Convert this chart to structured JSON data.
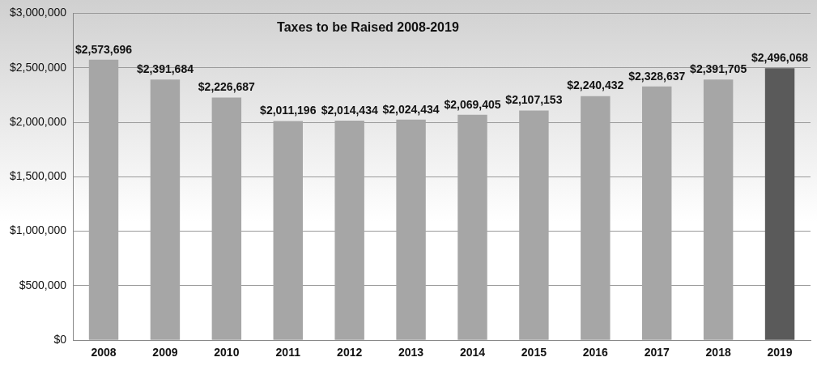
{
  "chart_data": {
    "type": "bar",
    "title": "Taxes to be Raised 2008-2019",
    "categories": [
      "2008",
      "2009",
      "2010",
      "2011",
      "2012",
      "2013",
      "2014",
      "2015",
      "2016",
      "2017",
      "2018",
      "2019"
    ],
    "values": [
      2573696,
      2391684,
      2226687,
      2011196,
      2014434,
      2024434,
      2069405,
      2107153,
      2240432,
      2328637,
      2391705,
      2496068
    ],
    "colors": [
      "#a6a6a6",
      "#a6a6a6",
      "#a6a6a6",
      "#a6a6a6",
      "#a6a6a6",
      "#a6a6a6",
      "#a6a6a6",
      "#a6a6a6",
      "#a6a6a6",
      "#a6a6a6",
      "#a6a6a6",
      "#5a5a5a"
    ],
    "value_labels": [
      "$2,573,696",
      "$2,391,684",
      "$2,226,687",
      "$2,011,196",
      "$2,014,434",
      "$2,024,434",
      "$2,069,405",
      "$2,107,153",
      "$2,240,432",
      "$2,328,637",
      "$2,391,705",
      "$2,496,068"
    ],
    "ylim": [
      0,
      3000000
    ],
    "yticks": [
      {
        "value": 0,
        "label": "$0"
      },
      {
        "value": 500000,
        "label": "$500,000"
      },
      {
        "value": 1000000,
        "label": "$1,000,000"
      },
      {
        "value": 1500000,
        "label": "$1,500,000"
      },
      {
        "value": 2000000,
        "label": "$2,000,000"
      },
      {
        "value": 2500000,
        "label": "$2,500,000"
      },
      {
        "value": 3000000,
        "label": "$3,000,000"
      }
    ],
    "grid": "y",
    "legend": false
  }
}
